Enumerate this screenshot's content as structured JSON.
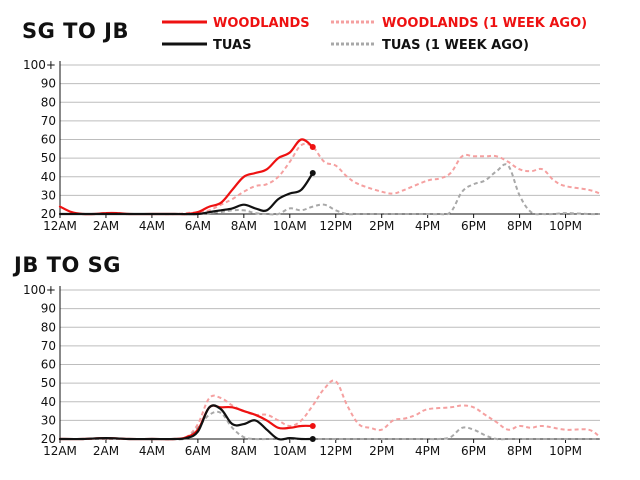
{
  "colors": {
    "woodlands": "#ee1111",
    "woodlands_week_ago": "#f5a0a0",
    "tuas": "#111111",
    "tuas_week_ago": "#a8a8a8"
  },
  "legend": {
    "woodlands": "WOODLANDS",
    "woodlands_week_ago": "WOODLANDS (1 WEEK AGO)",
    "tuas": "TUAS",
    "tuas_week_ago": "TUAS (1 WEEK AGO)"
  },
  "chart_data": [
    {
      "type": "line",
      "title": "SG TO JB",
      "x_unit": "hour of day",
      "xlim": [
        0,
        23.5
      ],
      "ylim": [
        20,
        100
      ],
      "yticks": [
        20,
        30,
        40,
        50,
        60,
        70,
        80,
        90,
        100
      ],
      "ytick_labels": [
        "20",
        "30",
        "40",
        "50",
        "60",
        "70",
        "80",
        "90",
        "100+"
      ],
      "xticks": [
        0,
        2,
        4,
        6,
        8,
        10,
        12,
        14,
        16,
        18,
        20,
        22
      ],
      "xtick_labels": [
        "12AM",
        "2AM",
        "4AM",
        "6AM",
        "8AM",
        "10AM",
        "12PM",
        "2PM",
        "4PM",
        "6PM",
        "8PM",
        "10PM"
      ],
      "grid": true,
      "series": [
        {
          "name": "WOODLANDS (1 WEEK AGO)",
          "key": "woodlands_week_ago",
          "dashed": true,
          "x": [
            0,
            0.5,
            1,
            2,
            3,
            4,
            5,
            5.5,
            6,
            6.5,
            7,
            7.5,
            8,
            8.5,
            9,
            9.5,
            10,
            10.5,
            11,
            11.5,
            12,
            12.5,
            13,
            14,
            14.5,
            15,
            16,
            16.5,
            17,
            17.5,
            18,
            18.5,
            19,
            19.5,
            20,
            20.5,
            21,
            21.5,
            22,
            23,
            23.5
          ],
          "y": [
            20,
            20,
            20,
            20,
            20,
            20,
            20,
            20.5,
            21,
            22,
            25,
            28,
            32,
            35,
            36,
            40,
            48,
            57,
            56,
            48,
            46,
            40,
            36,
            32,
            31,
            33,
            38,
            39,
            42,
            51,
            51,
            51,
            51,
            48,
            44,
            43,
            44,
            38,
            35,
            33,
            31
          ]
        },
        {
          "name": "TUAS (1 WEEK AGO)",
          "key": "tuas_week_ago",
          "dashed": true,
          "x": [
            0,
            1,
            2,
            3,
            4,
            5,
            6,
            6.5,
            7,
            7.5,
            8,
            8.5,
            9,
            9.5,
            10,
            10.5,
            11,
            11.5,
            12,
            12.5,
            13,
            14,
            15,
            16,
            16.5,
            17,
            17.5,
            18,
            18.5,
            19,
            19.5,
            20,
            20.5,
            21,
            21.5,
            22,
            23,
            23.5
          ],
          "y": [
            20,
            20,
            20,
            20,
            20,
            20,
            20,
            20.5,
            21,
            22,
            22,
            20.5,
            20,
            20,
            23,
            22,
            24,
            25,
            22,
            20,
            20,
            20,
            20,
            20,
            20,
            21,
            32,
            36,
            38,
            43,
            46,
            30,
            21,
            20,
            20,
            20.5,
            20,
            20
          ]
        },
        {
          "name": "WOODLANDS",
          "key": "woodlands",
          "dashed": false,
          "end_marker": true,
          "x": [
            0,
            0.5,
            1,
            1.5,
            2,
            2.5,
            3,
            4,
            5,
            5.5,
            6,
            6.5,
            7,
            7.5,
            8,
            8.5,
            9,
            9.5,
            10,
            10.5,
            11
          ],
          "y": [
            24,
            21,
            20,
            20,
            20.5,
            20.5,
            20,
            20,
            20,
            20,
            21,
            24,
            26,
            33,
            40,
            42,
            44,
            50,
            53,
            60,
            56
          ]
        },
        {
          "name": "TUAS",
          "key": "tuas",
          "dashed": false,
          "end_marker": true,
          "x": [
            0,
            1,
            2,
            3,
            4,
            5,
            6,
            6.5,
            7,
            7.5,
            8,
            8.5,
            9,
            9.5,
            10,
            10.5,
            11
          ],
          "y": [
            20,
            20,
            20,
            20,
            20,
            20,
            20,
            21,
            22,
            23,
            25,
            23,
            22,
            28,
            31,
            33,
            42
          ]
        }
      ]
    },
    {
      "type": "line",
      "title": "JB TO SG",
      "x_unit": "hour of day",
      "xlim": [
        0,
        23.5
      ],
      "ylim": [
        20,
        100
      ],
      "yticks": [
        20,
        30,
        40,
        50,
        60,
        70,
        80,
        90,
        100
      ],
      "ytick_labels": [
        "20",
        "30",
        "40",
        "50",
        "60",
        "70",
        "80",
        "90",
        "100+"
      ],
      "xticks": [
        0,
        2,
        4,
        6,
        8,
        10,
        12,
        14,
        16,
        18,
        20,
        22
      ],
      "xtick_labels": [
        "12AM",
        "2AM",
        "4AM",
        "6AM",
        "8AM",
        "10AM",
        "12PM",
        "2PM",
        "4PM",
        "6PM",
        "8PM",
        "10PM"
      ],
      "grid": true,
      "series": [
        {
          "name": "WOODLANDS (1 WEEK AGO)",
          "key": "woodlands_week_ago",
          "dashed": true,
          "x": [
            0,
            1,
            2,
            3,
            4,
            5,
            5.5,
            6,
            6.5,
            7,
            7.5,
            8,
            8.5,
            9,
            9.5,
            10,
            10.5,
            11,
            11.5,
            12,
            12.5,
            13,
            13.5,
            14,
            14.5,
            15,
            15.5,
            16,
            17,
            17.5,
            18,
            18.5,
            19,
            19.5,
            20,
            20.5,
            21,
            22,
            23,
            23.5
          ],
          "y": [
            20,
            20,
            20,
            20,
            20,
            20,
            21,
            28,
            42,
            42,
            38,
            35,
            33,
            33,
            30,
            27,
            30,
            38,
            47,
            51,
            38,
            28,
            26,
            25,
            30,
            31,
            33,
            36,
            37,
            38,
            37,
            33,
            29,
            25,
            27,
            26,
            27,
            25,
            25,
            21
          ]
        },
        {
          "name": "TUAS (1 WEEK AGO)",
          "key": "tuas_week_ago",
          "dashed": true,
          "x": [
            0,
            1,
            2,
            3,
            4,
            5,
            5.5,
            6,
            6.5,
            7,
            7.5,
            8,
            8.5,
            9,
            9.5,
            10,
            11,
            12,
            13,
            14,
            15,
            16,
            16.5,
            17,
            17.5,
            18,
            18.5,
            19,
            19.5,
            20,
            21,
            22,
            23,
            23.5
          ],
          "y": [
            20,
            20,
            20,
            20,
            20,
            20,
            20.5,
            26,
            33,
            34,
            26,
            21,
            20,
            20,
            20,
            20,
            20,
            20,
            20,
            20,
            20,
            20,
            20,
            21,
            26,
            25,
            22,
            20,
            20,
            20,
            20,
            20,
            20,
            20
          ]
        },
        {
          "name": "WOODLANDS",
          "key": "woodlands",
          "dashed": false,
          "end_marker": true,
          "x": [
            0,
            1,
            2,
            3,
            4,
            5,
            5.5,
            6,
            6.5,
            7,
            7.5,
            8,
            8.5,
            9,
            9.5,
            10,
            10.5,
            11
          ],
          "y": [
            20,
            20,
            20.5,
            20,
            20,
            20,
            21,
            25,
            37,
            37,
            37,
            35,
            33,
            30,
            26,
            26,
            27,
            27
          ]
        },
        {
          "name": "TUAS",
          "key": "tuas",
          "dashed": false,
          "end_marker": true,
          "x": [
            0,
            1,
            2,
            3,
            4,
            5,
            5.5,
            6,
            6.5,
            7,
            7.5,
            8,
            8.5,
            9,
            9.5,
            10,
            10.5,
            11
          ],
          "y": [
            20,
            20,
            20.5,
            20,
            20,
            20,
            20.5,
            24,
            37,
            36,
            28,
            28,
            30,
            25,
            20,
            20.5,
            20,
            20
          ]
        }
      ]
    }
  ]
}
